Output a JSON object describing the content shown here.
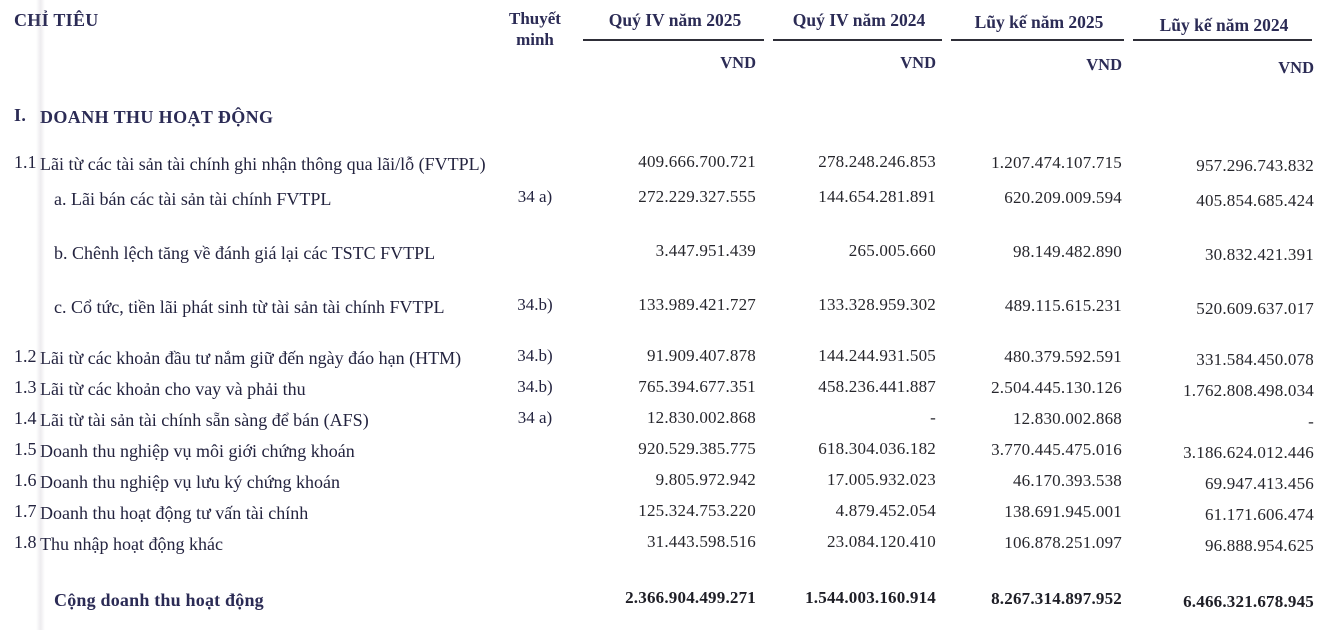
{
  "table": {
    "header": {
      "chi_tieu": "CHỈ TIÊU",
      "note_line1": "Thuyết",
      "note_line2": "minh",
      "columns": [
        {
          "title": "Quý IV năm 2025",
          "unit": "VND"
        },
        {
          "title": "Quý IV năm 2024",
          "unit": "VND"
        },
        {
          "title": "Lũy kế năm 2025",
          "unit": "VND"
        },
        {
          "title": "Lũy kế năm 2024",
          "unit": "VND"
        }
      ]
    },
    "rows": [
      {
        "kind": "section",
        "num": "I.",
        "label": "DOANH THU HOẠT ĐỘNG",
        "note": "",
        "values": [
          "",
          "",
          "",
          ""
        ]
      },
      {
        "kind": "main",
        "num": "1.1",
        "label": "Lãi từ các tài sản tài chính ghi nhận thông qua lãi/lỗ (FVTPL)",
        "note": "",
        "values": [
          "409.666.700.721",
          "278.248.246.853",
          "1.207.474.107.715",
          "957.296.743.832"
        ]
      },
      {
        "kind": "sub",
        "num": "",
        "label": "a. Lãi bán các tài sản tài chính FVTPL",
        "note": "34 a)",
        "values": [
          "272.229.327.555",
          "144.654.281.891",
          "620.209.009.594",
          "405.854.685.424"
        ]
      },
      {
        "kind": "sub",
        "num": "",
        "label": "b. Chênh lệch tăng về đánh giá lại các TSTC FVTPL",
        "note": "",
        "values": [
          "3.447.951.439",
          "265.005.660",
          "98.149.482.890",
          "30.832.421.391"
        ]
      },
      {
        "kind": "sub",
        "num": "",
        "label": "c. Cổ tức, tiền lãi phát sinh từ tài sản tài chính FVTPL",
        "note": "34.b)",
        "values": [
          "133.989.421.727",
          "133.328.959.302",
          "489.115.615.231",
          "520.609.637.017"
        ]
      },
      {
        "kind": "item",
        "num": "1.2",
        "label": "Lãi từ các khoản đầu tư nắm giữ đến ngày đáo hạn (HTM)",
        "note": "34.b)",
        "values": [
          "91.909.407.878",
          "144.244.931.505",
          "480.379.592.591",
          "331.584.450.078"
        ]
      },
      {
        "kind": "item",
        "num": "1.3",
        "label": "Lãi từ các khoản cho vay và phải thu",
        "note": "34.b)",
        "values": [
          "765.394.677.351",
          "458.236.441.887",
          "2.504.445.130.126",
          "1.762.808.498.034"
        ]
      },
      {
        "kind": "item",
        "num": "1.4",
        "label": "Lãi từ tài sản tài chính sẵn sàng để bán (AFS)",
        "note": "34 a)",
        "values": [
          "12.830.002.868",
          "-",
          "12.830.002.868",
          "-"
        ]
      },
      {
        "kind": "item",
        "num": "1.5",
        "label": "Doanh thu nghiệp vụ môi giới chứng khoán",
        "note": "",
        "values": [
          "920.529.385.775",
          "618.304.036.182",
          "3.770.445.475.016",
          "3.186.624.012.446"
        ]
      },
      {
        "kind": "item",
        "num": "1.6",
        "label": "Doanh thu nghiệp vụ lưu ký chứng khoán",
        "note": "",
        "values": [
          "9.805.972.942",
          "17.005.932.023",
          "46.170.393.538",
          "69.947.413.456"
        ]
      },
      {
        "kind": "item",
        "num": "1.7",
        "label": "Doanh thu hoạt động tư vấn tài chính",
        "note": "",
        "values": [
          "125.324.753.220",
          "4.879.452.054",
          "138.691.945.001",
          "61.171.606.474"
        ]
      },
      {
        "kind": "item",
        "num": "1.8",
        "label": "Thu nhập hoạt động khác",
        "note": "",
        "values": [
          "31.443.598.516",
          "23.084.120.410",
          "106.878.251.097",
          "96.888.954.625"
        ]
      },
      {
        "kind": "total",
        "num": "",
        "label": "Cộng doanh thu hoạt động",
        "note": "",
        "values": [
          "2.366.904.499.271",
          "1.544.003.160.914",
          "8.267.314.897.952",
          "6.466.321.678.945"
        ]
      }
    ]
  },
  "colors": {
    "heading": "#2b2b55",
    "text": "#26262c",
    "rule": "#2e2e38",
    "background": "#ffffff"
  }
}
